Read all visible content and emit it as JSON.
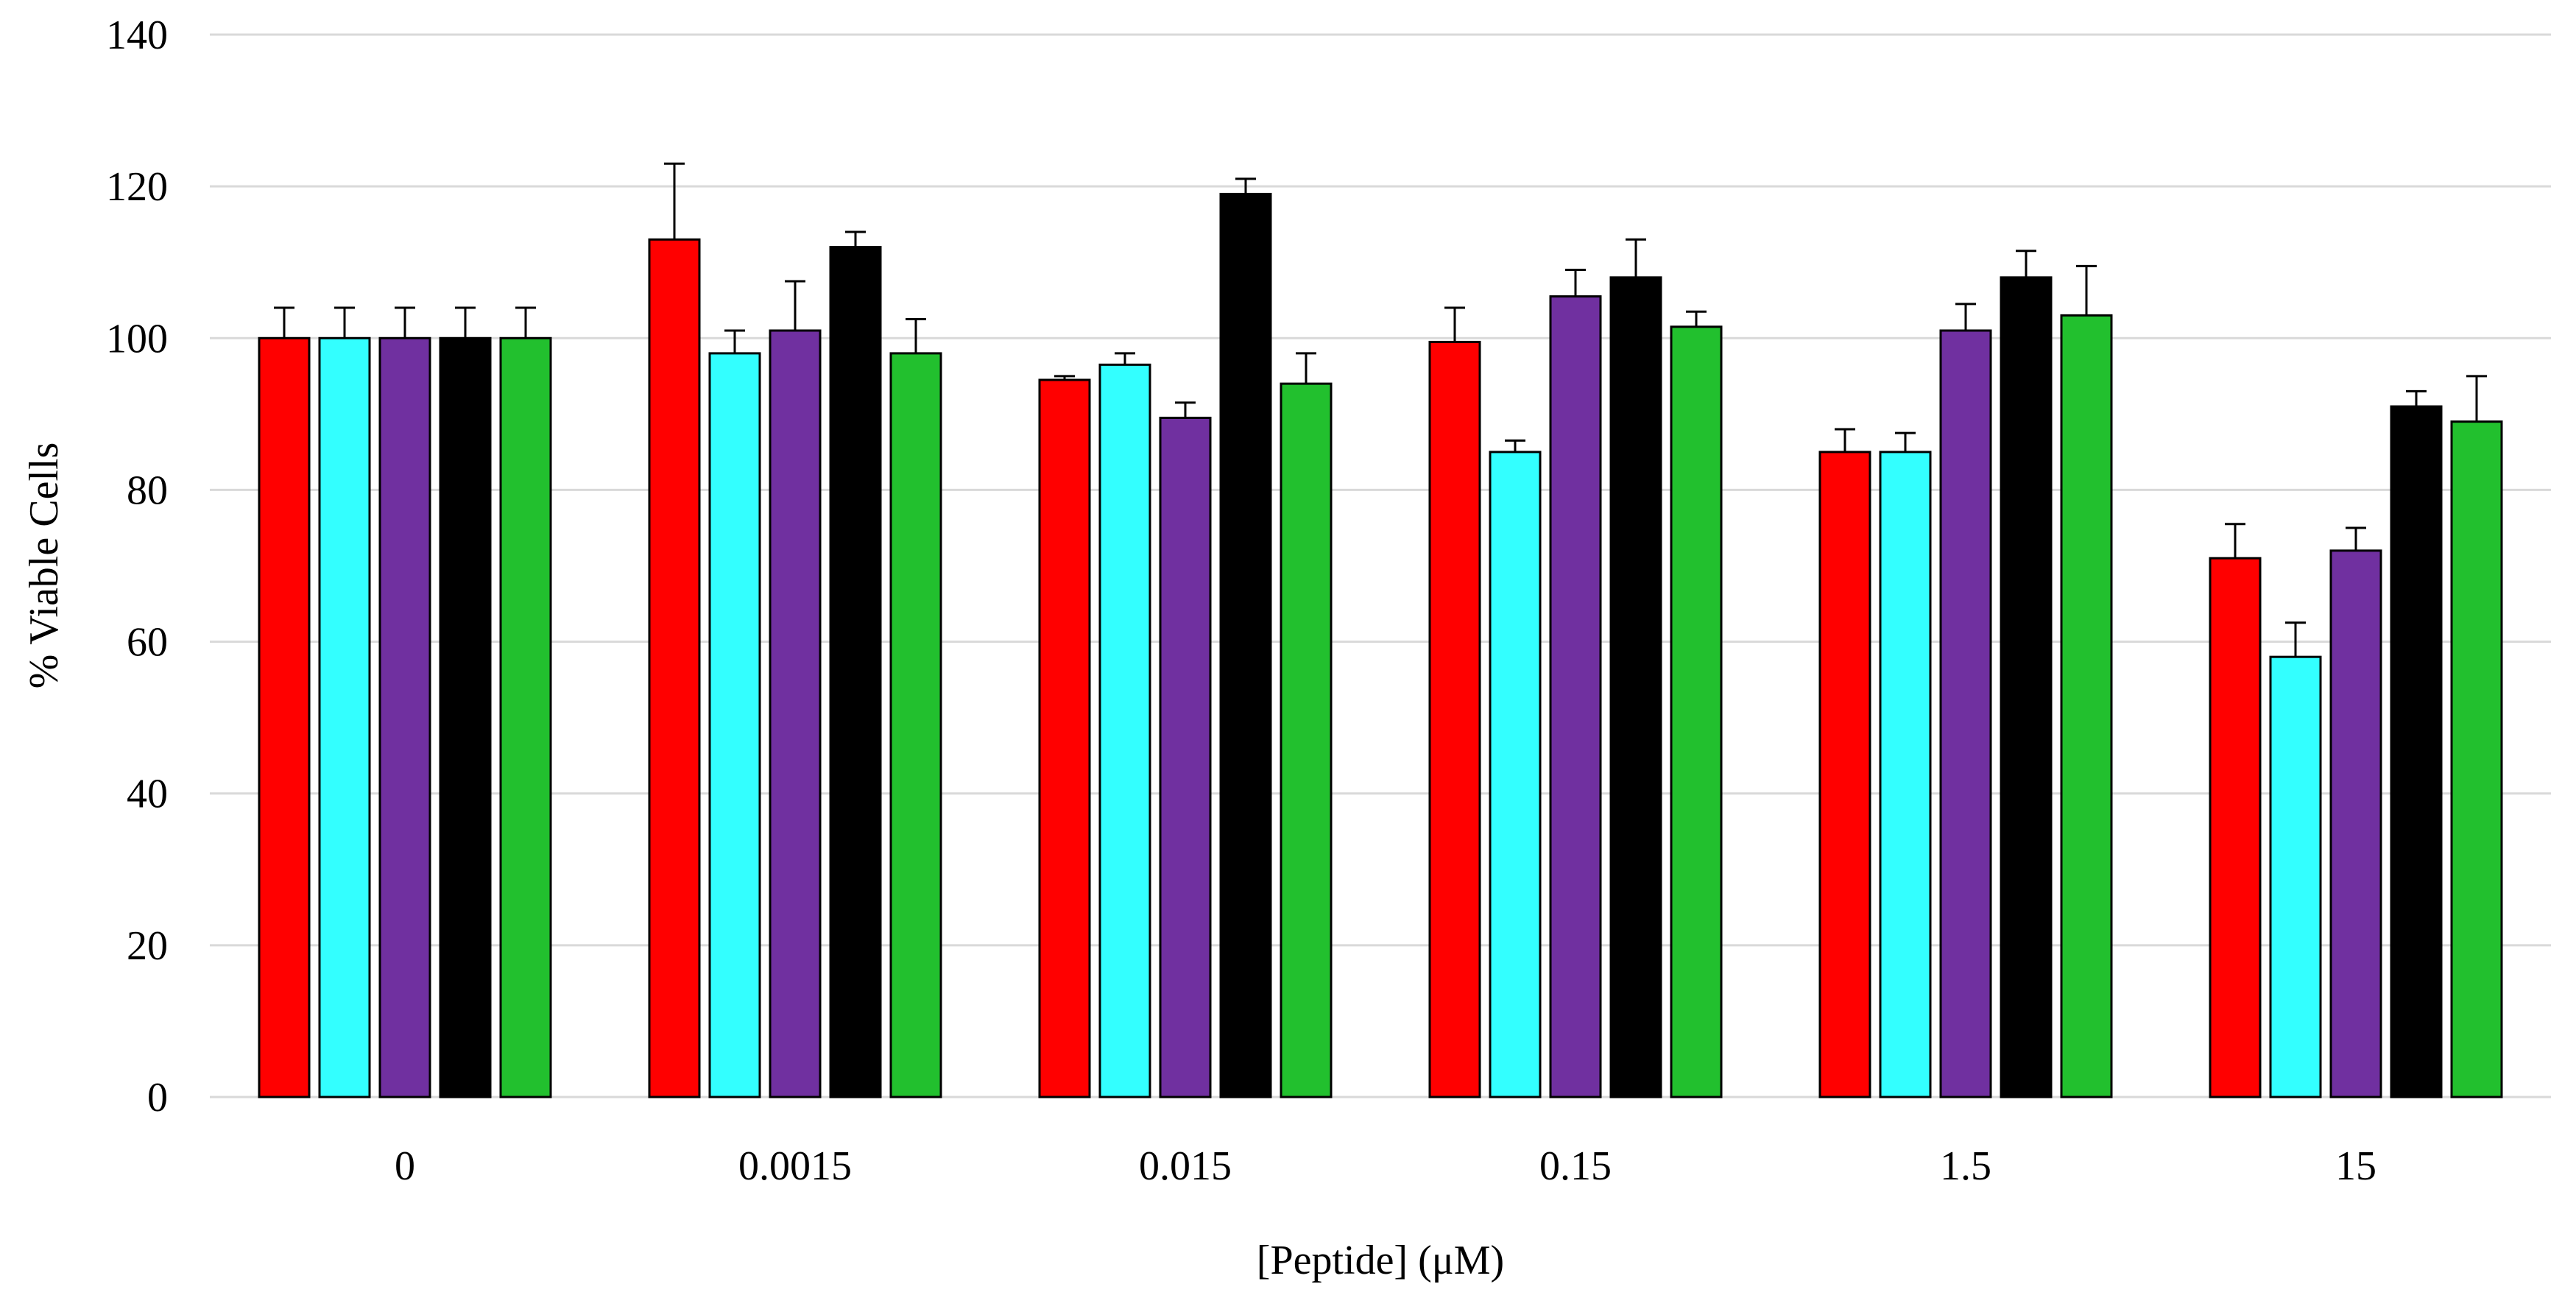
{
  "chart_data": {
    "type": "bar",
    "title": "",
    "xlabel": "[Peptide]  (μM)",
    "ylabel": "% Viable  Cells",
    "ylim": [
      0,
      140
    ],
    "yticks": [
      "0",
      "20",
      "40",
      "60",
      "80",
      "100",
      "120",
      "140"
    ],
    "categories": [
      "0",
      "0.0015",
      "0.015",
      "0.15",
      "1.5",
      "15"
    ],
    "grid": true,
    "legend": "none",
    "series": [
      {
        "color": "#ff0000",
        "values": [
          100,
          113,
          94.5,
          99.5,
          85,
          71
        ],
        "errors": [
          4,
          10,
          0.5,
          4.5,
          3,
          4.5
        ]
      },
      {
        "color": "#33ffff",
        "values": [
          100,
          98,
          96.5,
          85,
          85,
          58
        ],
        "errors": [
          4,
          3,
          1.5,
          1.5,
          2.5,
          4.5
        ]
      },
      {
        "color": "#7030a0",
        "values": [
          100,
          101,
          89.5,
          105.5,
          101,
          72
        ],
        "errors": [
          4,
          6.5,
          2,
          3.5,
          3.5,
          3
        ]
      },
      {
        "color": "#000000",
        "values": [
          100,
          112,
          119,
          108,
          108,
          91
        ],
        "errors": [
          4,
          2,
          2,
          5,
          3.5,
          2
        ]
      },
      {
        "color": "#22c02e",
        "values": [
          100,
          98,
          94,
          101.5,
          103,
          89
        ],
        "errors": [
          4,
          4.5,
          4,
          2,
          6.5,
          6
        ]
      }
    ]
  }
}
